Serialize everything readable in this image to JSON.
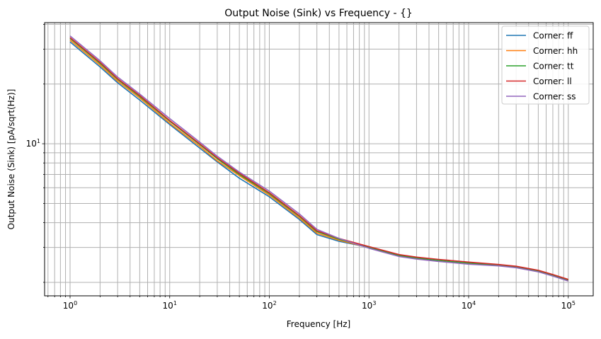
{
  "chart_data": {
    "type": "line",
    "title": "Output Noise (Sink) vs Frequency - {}",
    "xlabel": "Frequency [Hz]",
    "ylabel": "Output Noise (Sink) [pA/sqrt(Hz)]",
    "xscale": "log",
    "yscale": "log",
    "xlim": [
      0.555,
      178000
    ],
    "ylim": [
      1.71,
      40.8
    ],
    "grid": true,
    "grid_minor": true,
    "legend_position": "top-right",
    "x_tick_labels": [
      {
        "value": 1,
        "base": "10",
        "exp": "0"
      },
      {
        "value": 10,
        "base": "10",
        "exp": "1"
      },
      {
        "value": 100,
        "base": "10",
        "exp": "2"
      },
      {
        "value": 1000,
        "base": "10",
        "exp": "3"
      },
      {
        "value": 10000,
        "base": "10",
        "exp": "4"
      },
      {
        "value": 100000,
        "base": "10",
        "exp": "5"
      }
    ],
    "y_tick_labels": [
      {
        "value": 10,
        "base": "10",
        "exp": "1"
      }
    ],
    "x": [
      1,
      2,
      3,
      5,
      10,
      20,
      30,
      50,
      100,
      200,
      300,
      500,
      1000,
      2000,
      3000,
      5000,
      10000,
      20000,
      30000,
      50000,
      70000,
      100000
    ],
    "series": [
      {
        "name": "Corner: ff",
        "color": "#1f77b4",
        "values": [
          32.6,
          24.4,
          20.3,
          16.6,
          12.5,
          9.5,
          8.1,
          6.7,
          5.4,
          4.15,
          3.48,
          3.22,
          3.0,
          2.73,
          2.65,
          2.58,
          2.5,
          2.44,
          2.39,
          2.28,
          2.17,
          2.05
        ]
      },
      {
        "name": "Corner: hh",
        "color": "#ff7f0e",
        "values": [
          33.3,
          24.9,
          20.7,
          17.0,
          12.7,
          9.7,
          8.2,
          6.9,
          5.5,
          4.22,
          3.54,
          3.26,
          2.99,
          2.72,
          2.64,
          2.57,
          2.49,
          2.43,
          2.38,
          2.27,
          2.16,
          2.04
        ]
      },
      {
        "name": "Corner: tt",
        "color": "#2ca02c",
        "values": [
          34.0,
          25.4,
          21.1,
          17.3,
          13.0,
          9.9,
          8.4,
          7.0,
          5.6,
          4.3,
          3.6,
          3.3,
          3.0,
          2.73,
          2.65,
          2.58,
          2.5,
          2.44,
          2.39,
          2.28,
          2.17,
          2.05
        ]
      },
      {
        "name": "Corner: ll",
        "color": "#d62728",
        "values": [
          34.3,
          25.7,
          21.3,
          17.5,
          13.1,
          10.0,
          8.5,
          7.1,
          5.66,
          4.34,
          3.64,
          3.33,
          3.03,
          2.76,
          2.68,
          2.61,
          2.53,
          2.46,
          2.41,
          2.3,
          2.19,
          2.07
        ]
      },
      {
        "name": "Corner: ss",
        "color": "#9467bd",
        "values": [
          35.0,
          26.2,
          21.7,
          17.8,
          13.4,
          10.2,
          8.65,
          7.2,
          5.77,
          4.43,
          3.7,
          3.33,
          2.97,
          2.7,
          2.62,
          2.55,
          2.47,
          2.42,
          2.37,
          2.26,
          2.15,
          2.03
        ]
      }
    ]
  }
}
